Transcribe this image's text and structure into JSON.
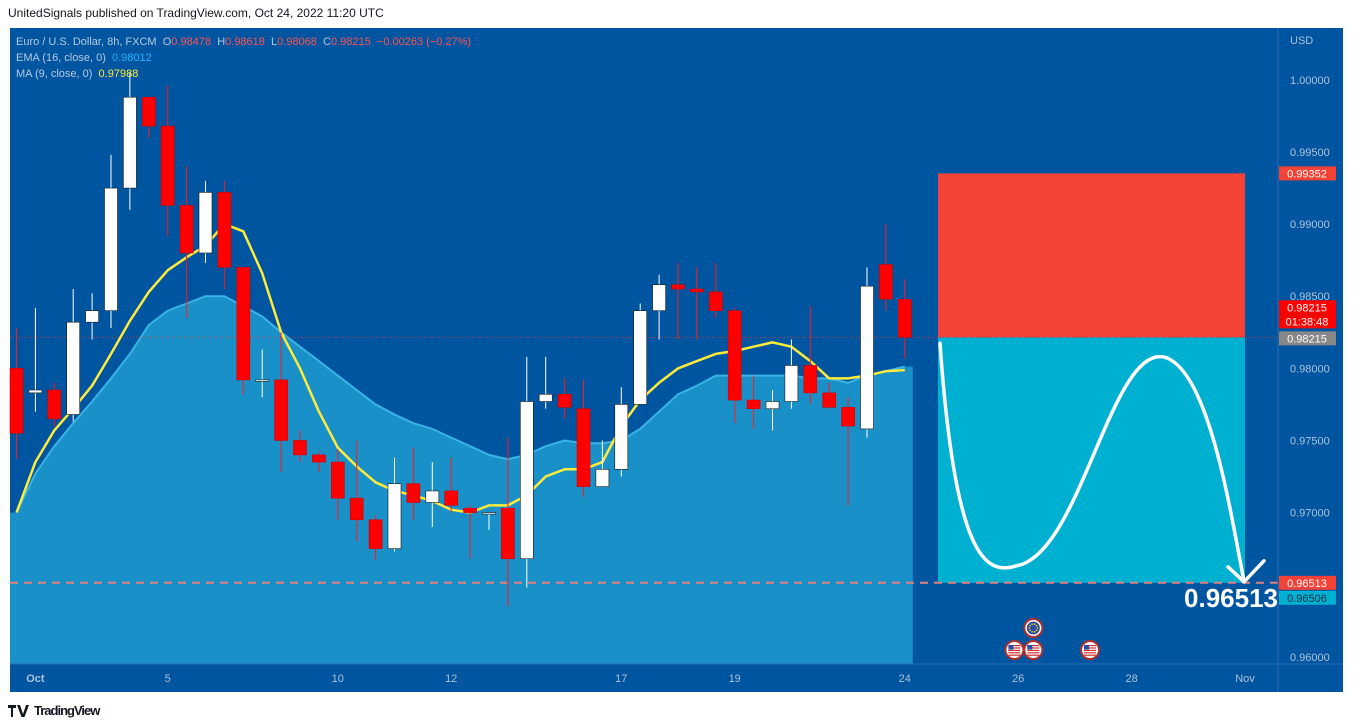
{
  "header": {
    "published": "UnitedSignals published on TradingView.com, Oct 24, 2022 11:20 UTC"
  },
  "legend": {
    "symbol": "Euro / U.S. Dollar, 8h, FXCM",
    "o_label": "O",
    "o": "0.98478",
    "h_label": "H",
    "h": "0.98618",
    "l_label": "L",
    "l": "0.98068",
    "c_label": "C",
    "c": "0.98215",
    "change": "−0.00263 (−0.27%)",
    "ema_label": "EMA (16, close, 0)",
    "ema_value": "0.98012",
    "ma_label": "MA (9, close, 0)",
    "ma_value": "0.97988"
  },
  "footer": {
    "brand": "TradingView",
    "logo": "tradingview-logo-icon"
  },
  "colors": {
    "background": "#0055a0",
    "bull": "#ffffff",
    "bear": "#ff0000",
    "ema_area": "#1e9bd0",
    "ma_line": "#ffeb3b",
    "stop_zone": "#f44336",
    "target_zone": "#00b0d0"
  },
  "chart_data": {
    "type": "candlestick",
    "currency": "USD",
    "y_axis_ticks": [
      "1.00000",
      "0.99500",
      "0.99000",
      "0.98500",
      "0.98000",
      "0.97500",
      "0.97000",
      "0.96500",
      "0.96000"
    ],
    "ylim": [
      0.9595,
      1.0036
    ],
    "x_axis_labels": [
      {
        "label": "Oct",
        "i": 1
      },
      {
        "label": "5",
        "i": 8
      },
      {
        "label": "10",
        "i": 17
      },
      {
        "label": "12",
        "i": 23
      },
      {
        "label": "17",
        "i": 32
      },
      {
        "label": "19",
        "i": 38
      },
      {
        "label": "24",
        "i": 47
      },
      {
        "label": "26",
        "i": 53
      },
      {
        "label": "28",
        "i": 59
      },
      {
        "label": "Nov",
        "i": 65
      }
    ],
    "candles": [
      [
        0.98,
        0.9828,
        0.9737,
        0.9755
      ],
      [
        0.9783,
        0.9842,
        0.977,
        0.9785
      ],
      [
        0.9785,
        0.979,
        0.976,
        0.9765
      ],
      [
        0.9768,
        0.9855,
        0.9763,
        0.9832
      ],
      [
        0.9832,
        0.9852,
        0.982,
        0.984
      ],
      [
        0.984,
        0.9948,
        0.9828,
        0.9925
      ],
      [
        0.9925,
        1.0005,
        0.991,
        0.9988
      ],
      [
        0.9988,
        0.9988,
        0.996,
        0.9968
      ],
      [
        0.9968,
        0.9996,
        0.9892,
        0.9913
      ],
      [
        0.9913,
        0.994,
        0.9835,
        0.988
      ],
      [
        0.988,
        0.993,
        0.9873,
        0.9922
      ],
      [
        0.9922,
        0.993,
        0.9855,
        0.987
      ],
      [
        0.987,
        0.987,
        0.9782,
        0.9792
      ],
      [
        0.9792,
        0.9813,
        0.978,
        0.9792
      ],
      [
        0.9792,
        0.9825,
        0.9728,
        0.975
      ],
      [
        0.975,
        0.9757,
        0.9735,
        0.974
      ],
      [
        0.974,
        0.9742,
        0.9728,
        0.9735
      ],
      [
        0.9735,
        0.9744,
        0.9695,
        0.971
      ],
      [
        0.971,
        0.975,
        0.968,
        0.9695
      ],
      [
        0.9695,
        0.9698,
        0.9667,
        0.9675
      ],
      [
        0.9675,
        0.9738,
        0.9673,
        0.972
      ],
      [
        0.972,
        0.9745,
        0.9695,
        0.9707
      ],
      [
        0.9707,
        0.9735,
        0.969,
        0.9715
      ],
      [
        0.9715,
        0.9738,
        0.97,
        0.9705
      ],
      [
        0.9703,
        0.9705,
        0.9668,
        0.97
      ],
      [
        0.97,
        0.97,
        0.9688,
        0.97
      ],
      [
        0.9703,
        0.9752,
        0.9635,
        0.9668
      ],
      [
        0.9668,
        0.9808,
        0.9648,
        0.9777
      ],
      [
        0.9777,
        0.9808,
        0.9772,
        0.9782
      ],
      [
        0.9782,
        0.9793,
        0.9765,
        0.9773
      ],
      [
        0.9772,
        0.9792,
        0.9711,
        0.9718
      ],
      [
        0.9718,
        0.975,
        0.9718,
        0.973
      ],
      [
        0.973,
        0.9787,
        0.9725,
        0.9775
      ],
      [
        0.9775,
        0.9845,
        0.9775,
        0.984
      ],
      [
        0.984,
        0.9865,
        0.982,
        0.9858
      ],
      [
        0.9858,
        0.9873,
        0.982,
        0.9855
      ],
      [
        0.9855,
        0.987,
        0.982,
        0.9853
      ],
      [
        0.9853,
        0.9873,
        0.9835,
        0.984
      ],
      [
        0.984,
        0.9842,
        0.9762,
        0.9778
      ],
      [
        0.9778,
        0.9795,
        0.9758,
        0.9772
      ],
      [
        0.9772,
        0.9785,
        0.9757,
        0.9777
      ],
      [
        0.9777,
        0.982,
        0.9772,
        0.9802
      ],
      [
        0.9802,
        0.9843,
        0.9775,
        0.9783
      ],
      [
        0.9783,
        0.979,
        0.9772,
        0.9773
      ],
      [
        0.9773,
        0.978,
        0.9705,
        0.976
      ],
      [
        0.9758,
        0.987,
        0.9752,
        0.9857
      ],
      [
        0.9872,
        0.99,
        0.984,
        0.9848
      ],
      [
        0.98478,
        0.98618,
        0.98068,
        0.98215
      ]
    ],
    "ema16": [
      0.97,
      0.9727,
      0.9746,
      0.9762,
      0.9777,
      0.9793,
      0.981,
      0.983,
      0.984,
      0.9845,
      0.985,
      0.985,
      0.9843,
      0.9836,
      0.9825,
      0.9815,
      0.9805,
      0.9795,
      0.9785,
      0.9775,
      0.9768,
      0.9762,
      0.9758,
      0.9752,
      0.9746,
      0.974,
      0.9737,
      0.974,
      0.9746,
      0.975,
      0.9748,
      0.9748,
      0.975,
      0.9758,
      0.977,
      0.9782,
      0.9788,
      0.9795,
      0.9795,
      0.9795,
      0.9795,
      0.9795,
      0.9793,
      0.9793,
      0.979,
      0.9795,
      0.9798,
      0.98012
    ],
    "ma9": [
      0.97,
      0.9735,
      0.9757,
      0.9772,
      0.9788,
      0.981,
      0.9833,
      0.9853,
      0.9868,
      0.9877,
      0.9885,
      0.99,
      0.9895,
      0.9866,
      0.9825,
      0.98,
      0.977,
      0.9745,
      0.9732,
      0.9721,
      0.9715,
      0.9712,
      0.9708,
      0.9702,
      0.97,
      0.9705,
      0.9705,
      0.9712,
      0.9725,
      0.973,
      0.973,
      0.9735,
      0.976,
      0.9778,
      0.979,
      0.98,
      0.9805,
      0.981,
      0.9812,
      0.9815,
      0.9818,
      0.9815,
      0.9805,
      0.9793,
      0.9793,
      0.9795,
      0.9798,
      0.97988
    ],
    "horizontal_line": 0.96513,
    "position": {
      "entry": 0.98215,
      "stop": 0.99352,
      "target": 0.96513,
      "entry_label": "0.98215",
      "stop_label": "0.99352",
      "target_label": "0.96513",
      "target_big_label": "0.96513",
      "countdown": "01:38:48",
      "target_bid_label": "0.96506"
    },
    "projection": "sine-like path from entry down to target, arrow at end",
    "events": [
      {
        "icon": "eu-flag-icon",
        "i": 53.8,
        "row": 0
      },
      {
        "icon": "us-flag-icon",
        "i": 52.8,
        "row": 1
      },
      {
        "icon": "us-flag-icon",
        "i": 53.8,
        "row": 1
      },
      {
        "icon": "us-flag-icon",
        "i": 56.8,
        "row": 1
      }
    ]
  }
}
